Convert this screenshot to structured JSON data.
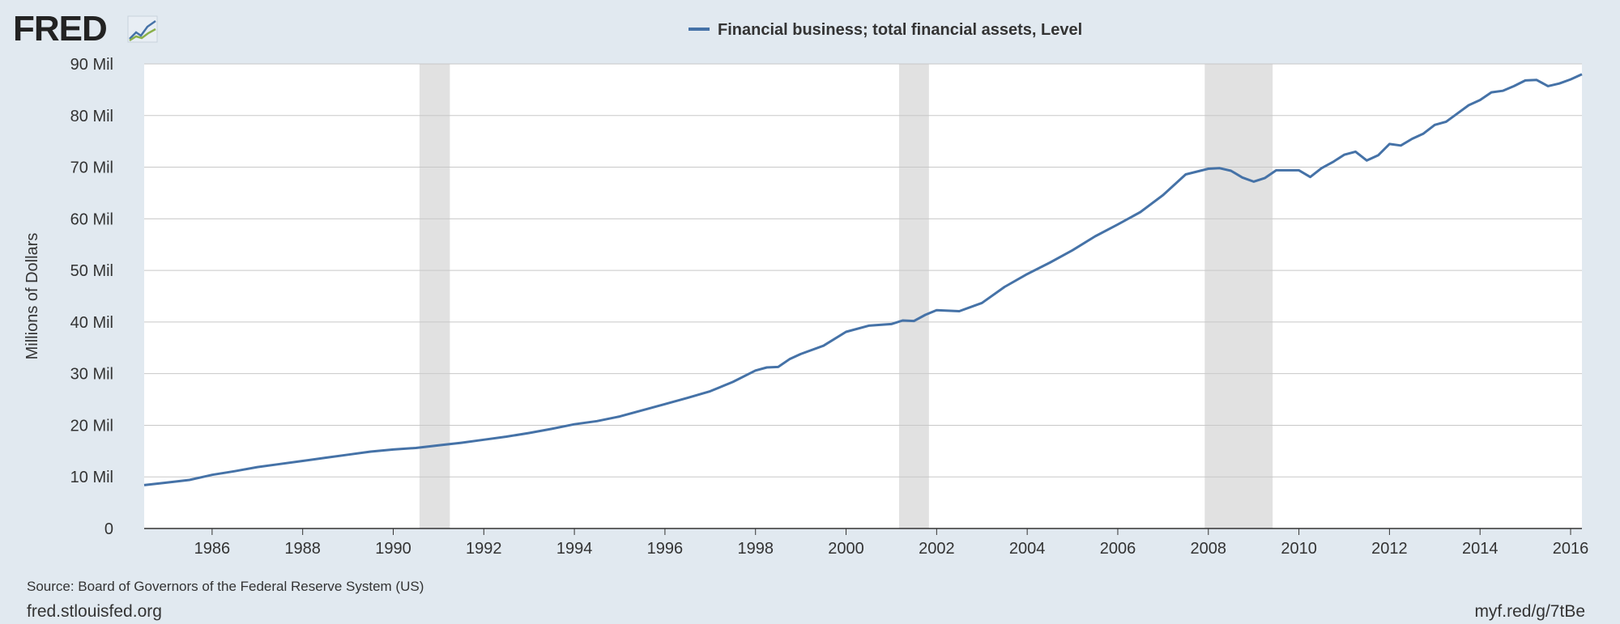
{
  "logo": {
    "text": "FRED"
  },
  "footer": {
    "source": "Source: Board of Governors of the Federal Reserve System (US)",
    "site": "fred.stlouisfed.org",
    "short_link": "myf.red/g/7tBe"
  },
  "colors": {
    "background": "#e1e9f0",
    "plot_background": "#ffffff",
    "series_line": "#4572a7",
    "recession_band": "#e1e1e1",
    "gridline": "#c8c8c8",
    "text": "#333333"
  },
  "chart_data": {
    "type": "line",
    "title": "",
    "xlabel": "",
    "ylabel": "Millions of Dollars",
    "legend_position": "top-center",
    "grid": true,
    "xlim": [
      1984.5,
      2016.25
    ],
    "ylim": [
      0,
      90
    ],
    "y_ticks": [
      0,
      10,
      20,
      30,
      40,
      50,
      60,
      70,
      80,
      90
    ],
    "y_tick_labels": [
      "0",
      "10 Mil",
      "20 Mil",
      "30 Mil",
      "40 Mil",
      "50 Mil",
      "60 Mil",
      "70 Mil",
      "80 Mil",
      "90 Mil"
    ],
    "x_ticks": [
      1986,
      1988,
      1990,
      1992,
      1994,
      1996,
      1998,
      2000,
      2002,
      2004,
      2006,
      2008,
      2010,
      2012,
      2014,
      2016
    ],
    "x_tick_labels": [
      "1986",
      "1988",
      "1990",
      "1992",
      "1994",
      "1996",
      "1998",
      "2000",
      "2002",
      "2004",
      "2006",
      "2008",
      "2010",
      "2012",
      "2014",
      "2016"
    ],
    "recessions": [
      [
        1990.58,
        1991.25
      ],
      [
        2001.17,
        2001.83
      ],
      [
        2007.92,
        2009.42
      ]
    ],
    "series": [
      {
        "name": "Financial business; total financial assets, Level",
        "x": [
          1984.5,
          1985.0,
          1985.5,
          1986.0,
          1986.5,
          1987.0,
          1987.5,
          1988.0,
          1988.5,
          1989.0,
          1989.5,
          1990.0,
          1990.5,
          1991.0,
          1991.5,
          1992.0,
          1992.5,
          1993.0,
          1993.5,
          1994.0,
          1994.5,
          1995.0,
          1995.5,
          1996.0,
          1996.5,
          1997.0,
          1997.5,
          1998.0,
          1998.25,
          1998.5,
          1998.75,
          1999.0,
          1999.5,
          2000.0,
          2000.5,
          2001.0,
          2001.25,
          2001.5,
          2001.75,
          2002.0,
          2002.5,
          2003.0,
          2003.5,
          2004.0,
          2004.5,
          2005.0,
          2005.5,
          2006.0,
          2006.5,
          2007.0,
          2007.5,
          2008.0,
          2008.25,
          2008.5,
          2008.75,
          2009.0,
          2009.25,
          2009.5,
          2010.0,
          2010.25,
          2010.5,
          2010.75,
          2011.0,
          2011.25,
          2011.5,
          2011.75,
          2012.0,
          2012.25,
          2012.5,
          2012.75,
          2013.0,
          2013.25,
          2013.5,
          2013.75,
          2014.0,
          2014.25,
          2014.5,
          2014.75,
          2015.0,
          2015.25,
          2015.5,
          2015.75,
          2016.0,
          2016.25
        ],
        "values": [
          8.4,
          8.9,
          9.4,
          10.4,
          11.1,
          11.9,
          12.5,
          13.1,
          13.7,
          14.3,
          14.9,
          15.3,
          15.6,
          16.1,
          16.6,
          17.2,
          17.8,
          18.5,
          19.3,
          20.2,
          20.8,
          21.7,
          22.9,
          24.1,
          25.3,
          26.6,
          28.4,
          30.6,
          31.2,
          31.3,
          32.8,
          33.8,
          35.4,
          38.1,
          39.3,
          39.6,
          40.3,
          40.2,
          41.4,
          42.3,
          42.1,
          43.7,
          46.8,
          49.3,
          51.5,
          53.9,
          56.6,
          58.9,
          61.3,
          64.6,
          68.6,
          69.7,
          69.8,
          69.3,
          68.0,
          67.2,
          67.9,
          69.4,
          69.4,
          68.1,
          69.8,
          71.0,
          72.4,
          73.0,
          71.3,
          72.3,
          74.5,
          74.2,
          75.5,
          76.5,
          78.2,
          78.8,
          80.4,
          82.0,
          83.0,
          84.5,
          84.8,
          85.7,
          86.8,
          86.9,
          85.7,
          86.2,
          87.0,
          88.0
        ]
      }
    ]
  }
}
